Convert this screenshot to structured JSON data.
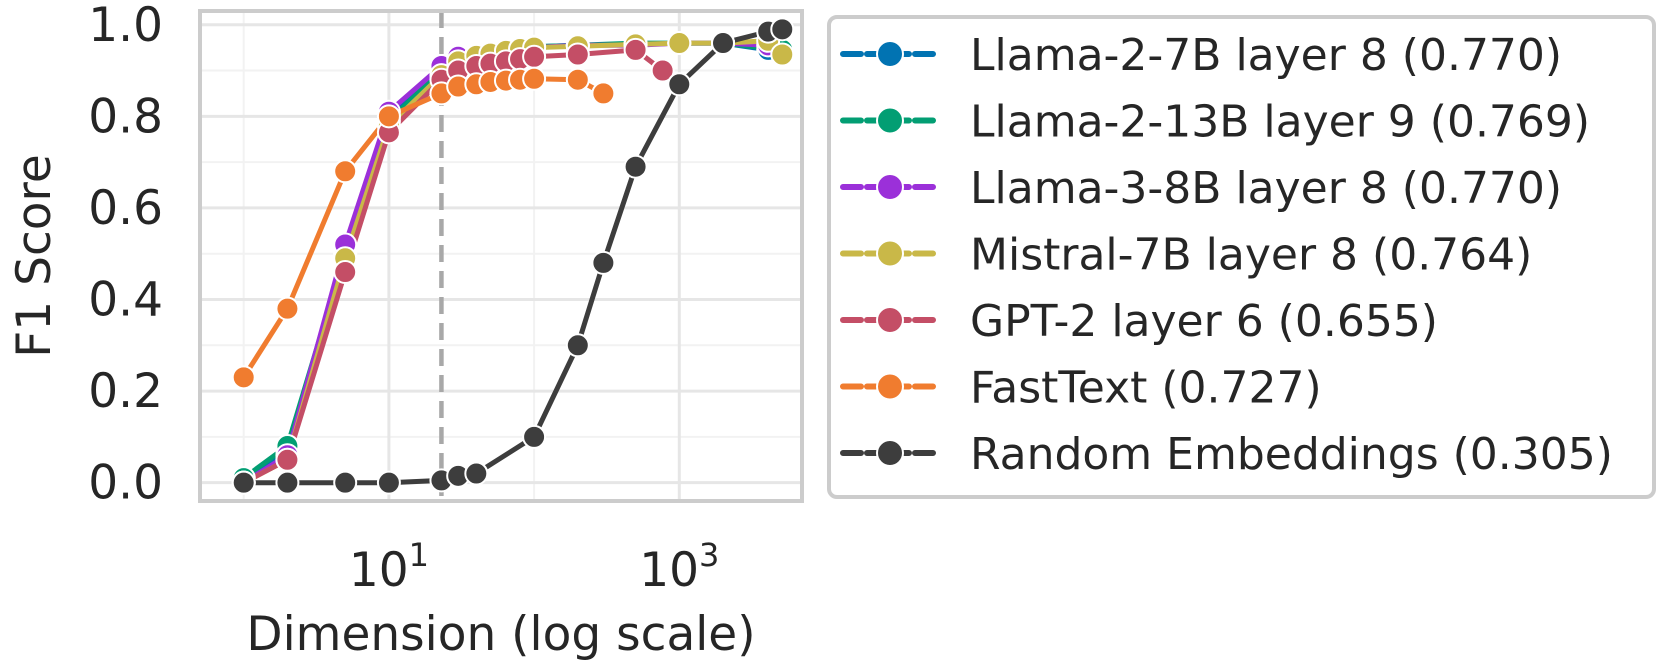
{
  "chart_data": {
    "type": "line",
    "title": "",
    "xlabel": "Dimension (log scale)",
    "ylabel": "F1 Score",
    "x_scale": "log",
    "xlim": [
      0.5,
      7000
    ],
    "ylim": [
      -0.04,
      1.03
    ],
    "x_ticks": [
      {
        "value": 10,
        "base": "10",
        "exp": "1"
      },
      {
        "value": 1000,
        "base": "10",
        "exp": "3"
      }
    ],
    "y_ticks": [
      {
        "value": 0.0,
        "label": "0.0"
      },
      {
        "value": 0.2,
        "label": "0.2"
      },
      {
        "value": 0.4,
        "label": "0.4"
      },
      {
        "value": 0.6,
        "label": "0.6"
      },
      {
        "value": 0.8,
        "label": "0.8"
      },
      {
        "value": 1.0,
        "label": "1.0"
      }
    ],
    "x_minor_grid": [
      1,
      100
    ],
    "y_minor_grid": [
      0.1,
      0.3,
      0.5,
      0.7,
      0.9
    ],
    "reference_line_x": 23,
    "grid": true,
    "legend_position": "outside-right",
    "series": [
      {
        "name": "Llama-2-7B layer 8 (0.770)",
        "color": "#0173b2",
        "points": [
          [
            1,
            0.01
          ],
          [
            2,
            0.07
          ],
          [
            5,
            0.5
          ],
          [
            10,
            0.8
          ],
          [
            23,
            0.9
          ],
          [
            30,
            0.925
          ],
          [
            40,
            0.935
          ],
          [
            50,
            0.94
          ],
          [
            64,
            0.945
          ],
          [
            80,
            0.95
          ],
          [
            100,
            0.952
          ],
          [
            200,
            0.955
          ],
          [
            500,
            0.957
          ],
          [
            1000,
            0.96
          ],
          [
            2000,
            0.96
          ],
          [
            4096,
            0.945
          ]
        ]
      },
      {
        "name": "Llama-2-13B layer 9 (0.769)",
        "color": "#029e73",
        "points": [
          [
            1,
            0.01
          ],
          [
            2,
            0.08
          ],
          [
            5,
            0.5
          ],
          [
            10,
            0.79
          ],
          [
            23,
            0.9
          ],
          [
            30,
            0.925
          ],
          [
            40,
            0.935
          ],
          [
            50,
            0.94
          ],
          [
            64,
            0.945
          ],
          [
            80,
            0.95
          ],
          [
            100,
            0.952
          ],
          [
            200,
            0.955
          ],
          [
            500,
            0.96
          ],
          [
            1000,
            0.96
          ],
          [
            2000,
            0.96
          ],
          [
            5120,
            0.945
          ]
        ]
      },
      {
        "name": "Llama-3-8B layer 8 (0.770)",
        "color": "#9b30d9",
        "points": [
          [
            1,
            0.0
          ],
          [
            2,
            0.06
          ],
          [
            5,
            0.52
          ],
          [
            10,
            0.81
          ],
          [
            23,
            0.91
          ],
          [
            30,
            0.93
          ],
          [
            40,
            0.935
          ],
          [
            50,
            0.94
          ],
          [
            64,
            0.945
          ],
          [
            80,
            0.95
          ],
          [
            100,
            0.95
          ],
          [
            200,
            0.955
          ],
          [
            500,
            0.955
          ],
          [
            1000,
            0.96
          ],
          [
            2000,
            0.96
          ],
          [
            4096,
            0.955
          ]
        ]
      },
      {
        "name": "Mistral-7B layer 8 (0.764)",
        "color": "#c9b848",
        "points": [
          [
            1,
            0.0
          ],
          [
            2,
            0.05
          ],
          [
            5,
            0.49
          ],
          [
            10,
            0.78
          ],
          [
            23,
            0.89
          ],
          [
            30,
            0.92
          ],
          [
            40,
            0.932
          ],
          [
            50,
            0.937
          ],
          [
            64,
            0.943
          ],
          [
            80,
            0.947
          ],
          [
            100,
            0.95
          ],
          [
            200,
            0.953
          ],
          [
            500,
            0.957
          ],
          [
            1000,
            0.96
          ],
          [
            2000,
            0.96
          ],
          [
            4096,
            0.965
          ],
          [
            5120,
            0.935
          ]
        ]
      },
      {
        "name": "GPT-2 layer 6 (0.655)",
        "color": "#c44e66",
        "points": [
          [
            1,
            0.0
          ],
          [
            2,
            0.05
          ],
          [
            5,
            0.46
          ],
          [
            10,
            0.765
          ],
          [
            23,
            0.88
          ],
          [
            30,
            0.9
          ],
          [
            40,
            0.91
          ],
          [
            50,
            0.915
          ],
          [
            64,
            0.92
          ],
          [
            80,
            0.925
          ],
          [
            100,
            0.93
          ],
          [
            200,
            0.935
          ],
          [
            500,
            0.945
          ],
          [
            768,
            0.9
          ]
        ]
      },
      {
        "name": "FastText (0.727)",
        "color": "#f07c2f",
        "points": [
          [
            1,
            0.23
          ],
          [
            2,
            0.38
          ],
          [
            5,
            0.68
          ],
          [
            10,
            0.8
          ],
          [
            23,
            0.85
          ],
          [
            30,
            0.865
          ],
          [
            40,
            0.87
          ],
          [
            50,
            0.875
          ],
          [
            64,
            0.878
          ],
          [
            80,
            0.88
          ],
          [
            100,
            0.882
          ],
          [
            200,
            0.88
          ],
          [
            300,
            0.85
          ]
        ]
      },
      {
        "name": "Random Embeddings (0.305)",
        "color": "#3d3d3d",
        "points": [
          [
            1,
            0.0
          ],
          [
            2,
            0.0
          ],
          [
            5,
            0.0
          ],
          [
            10,
            0.0
          ],
          [
            23,
            0.005
          ],
          [
            30,
            0.015
          ],
          [
            40,
            0.02
          ],
          [
            100,
            0.1
          ],
          [
            200,
            0.3
          ],
          [
            300,
            0.48
          ],
          [
            500,
            0.69
          ],
          [
            1000,
            0.87
          ],
          [
            2000,
            0.96
          ],
          [
            4096,
            0.985
          ],
          [
            5120,
            0.99
          ]
        ]
      }
    ]
  }
}
